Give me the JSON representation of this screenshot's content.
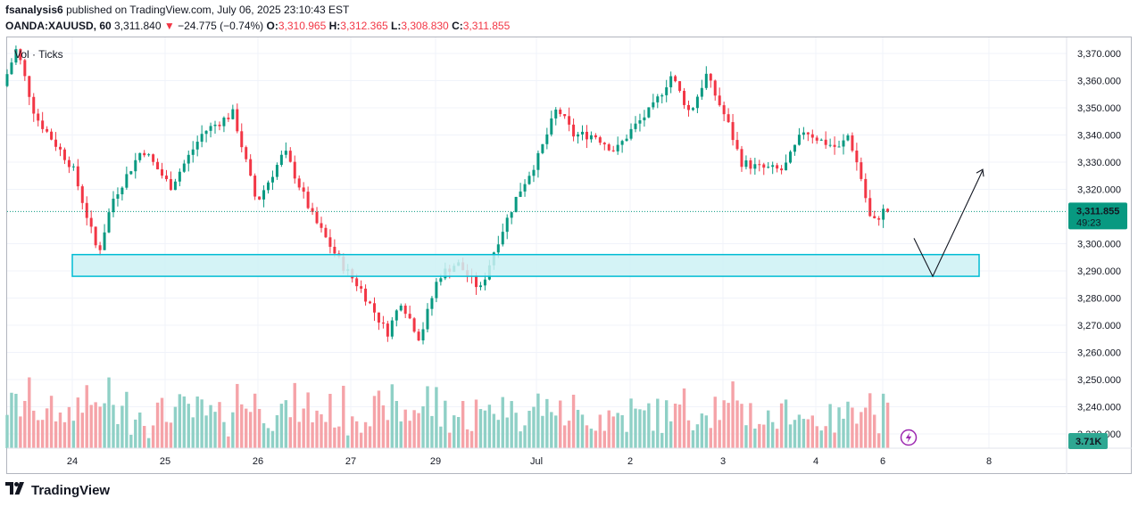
{
  "header": {
    "author": "fsanalysis6",
    "published_text": "published on TradingView.com, July 06, 2025 23:10:43 EST"
  },
  "symbol_bar": {
    "symbol": "OANDA:XAUUSD, 60",
    "last": "3,311.840",
    "change_arrow": "▼",
    "change": "−24.775 (−0.74%)",
    "o_label": "O:",
    "o_value": "3,310.965",
    "h_label": "H:",
    "h_value": "3,312.365",
    "l_label": "L:",
    "l_value": "3,308.830",
    "c_label": "C:",
    "c_value": "3,311.855"
  },
  "volume_label": "Vol · Ticks",
  "footer": {
    "logo_text": "TradingView",
    "logo_icon": "tradingview-logo-icon"
  },
  "colors": {
    "up": "#089981",
    "down": "#f23645",
    "vol_up": "#8fd0c6",
    "vol_down": "#f5a3a8",
    "zone": "#00bcd4",
    "zone_fill": "#cdf1f5"
  },
  "chart_data": {
    "type": "candlestick",
    "y_ticks": [
      "3,370.000",
      "3,360.000",
      "3,350.000",
      "3,340.000",
      "3,330.000",
      "3,320.000",
      "3,300.000",
      "3,290.000",
      "3,280.000",
      "3,270.000",
      "3,260.000",
      "3,250.000",
      "3,240.000",
      "3,230.000"
    ],
    "y_tick_values": [
      3370,
      3360,
      3350,
      3340,
      3330,
      3320,
      3300,
      3290,
      3280,
      3270,
      3260,
      3250,
      3240,
      3230
    ],
    "ylim": [
      3225,
      3377
    ],
    "x_ticks": [
      "24",
      "25",
      "26",
      "27",
      "29",
      "Jul",
      "2",
      "3",
      "4",
      "6",
      "8"
    ],
    "price_label": {
      "value": "3,311.855",
      "countdown": "49:23",
      "price": 3311.855
    },
    "volume_label": "3.71K",
    "zone": {
      "low": 3288,
      "high": 3296
    },
    "projection": [
      {
        "day": 6.3,
        "price": 3302
      },
      {
        "day": 6.55,
        "price": 3288
      },
      {
        "day": 7.0,
        "price": 3327
      }
    ],
    "key_prices": [
      {
        "day": 0.0,
        "price": 3358
      },
      {
        "day": 0.3,
        "price": 3372
      },
      {
        "day": 0.7,
        "price": 3347
      },
      {
        "day": 1.5,
        "price": 3328
      },
      {
        "day": 2.05,
        "price": 3296
      },
      {
        "day": 2.35,
        "price": 3316
      },
      {
        "day": 3.0,
        "price": 3335
      },
      {
        "day": 3.6,
        "price": 3321
      },
      {
        "day": 4.3,
        "price": 3341
      },
      {
        "day": 4.95,
        "price": 3348
      },
      {
        "day": 5.45,
        "price": 3315
      },
      {
        "day": 6.05,
        "price": 3334
      },
      {
        "day": 6.65,
        "price": 3310
      },
      {
        "day": 7.25,
        "price": 3293
      },
      {
        "day": 7.7,
        "price": 3283
      },
      {
        "day": 8.25,
        "price": 3267
      },
      {
        "day": 8.55,
        "price": 3279
      },
      {
        "day": 8.95,
        "price": 3265
      },
      {
        "day": 9.35,
        "price": 3288
      },
      {
        "day": 9.75,
        "price": 3293
      },
      {
        "day": 10.25,
        "price": 3283
      },
      {
        "day": 10.6,
        "price": 3300
      },
      {
        "day": 11.05,
        "price": 3318
      },
      {
        "day": 11.5,
        "price": 3332
      },
      {
        "day": 11.9,
        "price": 3350
      },
      {
        "day": 12.25,
        "price": 3340
      },
      {
        "day": 12.7,
        "price": 3340
      },
      {
        "day": 13.15,
        "price": 3334
      },
      {
        "day": 13.5,
        "price": 3342
      },
      {
        "day": 13.95,
        "price": 3350
      },
      {
        "day": 14.35,
        "price": 3362
      },
      {
        "day": 14.75,
        "price": 3348
      },
      {
        "day": 15.1,
        "price": 3362
      },
      {
        "day": 15.55,
        "price": 3345
      },
      {
        "day": 15.85,
        "price": 3330
      },
      {
        "day": 16.2,
        "price": 3328
      },
      {
        "day": 16.75,
        "price": 3327
      },
      {
        "day": 17.2,
        "price": 3342
      },
      {
        "day": 17.55,
        "price": 3338
      },
      {
        "day": 17.95,
        "price": 3335
      },
      {
        "day": 18.15,
        "price": 3340
      },
      {
        "day": 18.4,
        "price": 3326
      },
      {
        "day": 18.65,
        "price": 3307
      },
      {
        "day": 18.9,
        "price": 3312
      }
    ]
  }
}
